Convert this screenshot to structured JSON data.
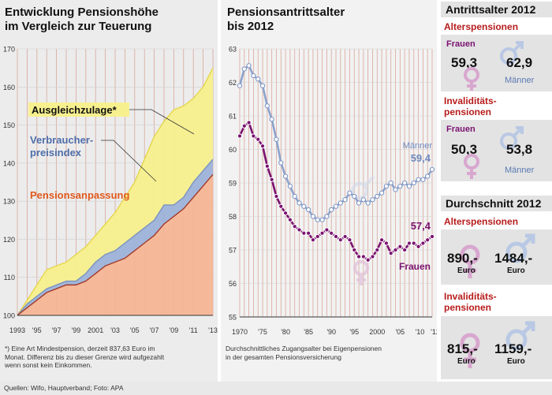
{
  "left": {
    "title_line1": "Entwicklung Pensionshöhe",
    "title_line2": "im Vergleich zur Teuerung",
    "label_ausgleich": "Ausgleichzulage*",
    "label_vpi1": "Verbraucher-",
    "label_vpi2": "preisindex",
    "label_pension": "Pensionsanpassung",
    "note_line1": "*) Eine Art Mindestpension, derzeit 837,63 Euro im",
    "note_line2": "Monat. Differenz bis zu dieser Grenze wird aufgezahlt",
    "note_line3": "wenn sonst kein Einkommen."
  },
  "middle": {
    "title_line1": "Pensionsantrittsalter",
    "title_line2": "bis 2012",
    "label_maenner": "Männer",
    "value_maenner": "59,4",
    "label_frauen": "Frauen",
    "value_frauen": "57,4",
    "note_line1": "Durchschnittliches Zugangsalter bei Eigenpensionen",
    "note_line2": "in der gesamten Pensionsversicherung"
  },
  "right": {
    "head1": "Antrittsalter 2012",
    "sub_alters": "Alterspensionen",
    "frauen": "Frauen",
    "maenner": "Männer",
    "alt_f": "59,3",
    "alt_m": "62,9",
    "sub_inv1": "Invaliditäts-",
    "sub_inv2": "pensionen",
    "inv_f": "50,3",
    "inv_m": "53,8",
    "head2": "Durchschnitt 2012",
    "d_alt_f": "890,-",
    "d_alt_m": "1484,-",
    "d_inv_f": "815,-",
    "d_inv_m": "1159,-",
    "euro": "Euro"
  },
  "source": "Quellen: Wifo, Hauptverband; Foto: APA",
  "colors": {
    "ausgleich": "#f7f08e",
    "vpi": "#9db3d9",
    "pension": "#f5b493",
    "frauen": "#7a1270",
    "maenner": "#8ca3cd",
    "grid": "#d9a79a",
    "accent_red": "#b71c1c"
  },
  "chart_data": [
    {
      "type": "area",
      "x": [
        "1993",
        "1994",
        "1995",
        "1996",
        "1997",
        "1998",
        "1999",
        "2000",
        "2001",
        "2002",
        "2003",
        "2004",
        "2005",
        "2006",
        "2007",
        "2008",
        "2009",
        "2010",
        "2011",
        "2012",
        "2013"
      ],
      "xticks": [
        "1993",
        "'95",
        "'97",
        "'99",
        "2001",
        "'03",
        "'05",
        "'07",
        "'09",
        "'11",
        "'13"
      ],
      "ylim": [
        100,
        170
      ],
      "yticks": [
        100,
        110,
        120,
        130,
        140,
        150,
        160,
        170
      ],
      "series": [
        {
          "name": "Ausgleichzulage*",
          "values": [
            100,
            104,
            108,
            112,
            113,
            114,
            116,
            118,
            121,
            124,
            127,
            131,
            135,
            141,
            147,
            151,
            154,
            155,
            157,
            160,
            165
          ]
        },
        {
          "name": "Verbraucherpreisindex",
          "values": [
            100,
            103,
            105,
            107,
            108,
            109,
            109,
            111,
            114,
            116,
            117,
            119,
            121,
            123,
            125,
            129,
            129,
            131,
            135,
            138,
            141
          ]
        },
        {
          "name": "Pensionsanpassung",
          "values": [
            100,
            102,
            104,
            106,
            107,
            108,
            108,
            109,
            111,
            113,
            114,
            115,
            117,
            119,
            121,
            124,
            126,
            128,
            131,
            134,
            137
          ]
        }
      ]
    },
    {
      "type": "line",
      "xlim": [
        1970,
        2012
      ],
      "xticks": [
        "1970",
        "'75",
        "'80",
        "'85",
        "'90",
        "'95",
        "2000",
        "'05",
        "'10",
        "'12"
      ],
      "ylim": [
        55,
        63
      ],
      "yticks": [
        55,
        56,
        57,
        58,
        59,
        60,
        61,
        62,
        63
      ],
      "series": [
        {
          "name": "Männer",
          "x": [
            1970,
            1971,
            1972,
            1973,
            1974,
            1975,
            1976,
            1977,
            1978,
            1979,
            1980,
            1981,
            1982,
            1983,
            1984,
            1985,
            1986,
            1987,
            1988,
            1989,
            1990,
            1991,
            1992,
            1993,
            1994,
            1995,
            1996,
            1997,
            1998,
            1999,
            2000,
            2001,
            2002,
            2003,
            2004,
            2005,
            2006,
            2007,
            2008,
            2009,
            2010,
            2011,
            2012
          ],
          "values": [
            61.9,
            62.4,
            62.5,
            62.2,
            62.1,
            61.9,
            61.3,
            60.9,
            60.3,
            59.6,
            59.2,
            58.9,
            58.6,
            58.4,
            58.3,
            58.2,
            58.0,
            57.9,
            57.9,
            58.0,
            58.2,
            58.3,
            58.4,
            58.5,
            58.7,
            58.6,
            58.4,
            58.5,
            58.4,
            58.5,
            58.6,
            58.7,
            58.9,
            59.0,
            58.8,
            58.9,
            59.0,
            58.9,
            59.0,
            59.1,
            59.1,
            59.2,
            59.4
          ]
        },
        {
          "name": "Frauen",
          "x": [
            1970,
            1971,
            1972,
            1973,
            1974,
            1975,
            1976,
            1977,
            1978,
            1979,
            1980,
            1981,
            1982,
            1983,
            1984,
            1985,
            1986,
            1987,
            1988,
            1989,
            1990,
            1991,
            1992,
            1993,
            1994,
            1995,
            1996,
            1997,
            1998,
            1999,
            2000,
            2001,
            2002,
            2003,
            2004,
            2005,
            2006,
            2007,
            2008,
            2009,
            2010,
            2011,
            2012
          ],
          "values": [
            60.4,
            60.7,
            60.8,
            60.4,
            60.3,
            60.1,
            59.5,
            59.1,
            58.6,
            58.3,
            58.1,
            57.9,
            57.7,
            57.6,
            57.5,
            57.5,
            57.3,
            57.4,
            57.5,
            57.6,
            57.5,
            57.4,
            57.3,
            57.4,
            57.3,
            57.0,
            56.8,
            56.8,
            56.7,
            56.8,
            57.0,
            57.3,
            57.2,
            56.9,
            57.0,
            57.1,
            57.0,
            57.2,
            57.2,
            57.1,
            57.2,
            57.3,
            57.4
          ]
        }
      ]
    }
  ]
}
